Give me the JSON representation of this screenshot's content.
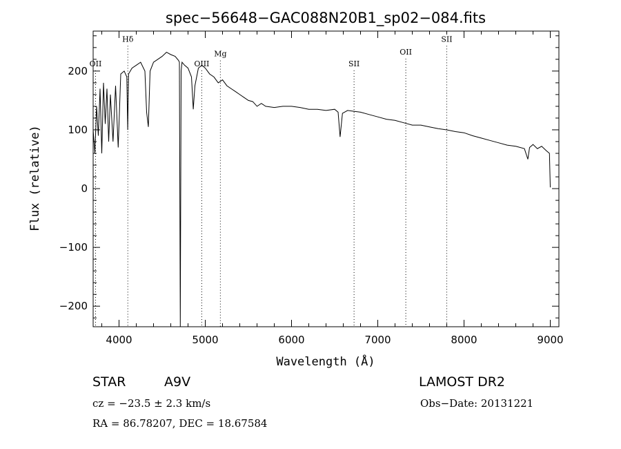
{
  "chart_data": {
    "type": "line",
    "title": "spec−56648−GAC088N20B1_sp02−084.fits",
    "xlabel": "Wavelength (Å)",
    "ylabel": "Flux (relative)",
    "xlim": [
      3700,
      9100
    ],
    "ylim": [
      -235,
      268
    ],
    "x_ticks": [
      4000,
      5000,
      6000,
      7000,
      8000,
      9000
    ],
    "y_ticks": [
      -200,
      -100,
      0,
      100,
      200
    ],
    "x_tick_labels": [
      "4000",
      "5000",
      "6000",
      "7000",
      "8000",
      "9000"
    ],
    "y_tick_labels": [
      "−200",
      "−100",
      "0",
      "100",
      "200"
    ],
    "grid": false,
    "series": [
      {
        "x": [
          3700,
          3720,
          3740,
          3760,
          3780,
          3800,
          3820,
          3840,
          3860,
          3880,
          3900,
          3930,
          3960,
          3990,
          4020,
          4060,
          4090,
          4101,
          4110,
          4150,
          4200,
          4250,
          4300,
          4320,
          4340,
          4360,
          4400,
          4450,
          4500,
          4550,
          4600,
          4650,
          4690,
          4700,
          4710,
          4720,
          4730,
          4760,
          4800,
          4840,
          4861,
          4880,
          4920,
          4960,
          5000,
          5050,
          5100,
          5150,
          5200,
          5250,
          5300,
          5350,
          5400,
          5450,
          5500,
          5550,
          5600,
          5650,
          5700,
          5800,
          5900,
          6000,
          6100,
          6200,
          6300,
          6400,
          6500,
          6540,
          6563,
          6590,
          6650,
          6700,
          6800,
          6900,
          7000,
          7100,
          7200,
          7300,
          7400,
          7500,
          7600,
          7700,
          7800,
          7900,
          8000,
          8100,
          8200,
          8300,
          8400,
          8500,
          8600,
          8700,
          8740,
          8760,
          8800,
          8850,
          8900,
          8950,
          8990,
          9000
        ],
        "values": [
          100,
          60,
          140,
          90,
          170,
          60,
          180,
          110,
          170,
          80,
          160,
          80,
          175,
          70,
          195,
          200,
          190,
          100,
          195,
          205,
          210,
          215,
          200,
          130,
          105,
          200,
          215,
          220,
          225,
          232,
          228,
          225,
          218,
          215,
          -235,
          200,
          215,
          210,
          205,
          190,
          135,
          175,
          205,
          210,
          205,
          195,
          190,
          180,
          185,
          175,
          170,
          165,
          160,
          155,
          150,
          148,
          140,
          145,
          140,
          138,
          140,
          140,
          138,
          135,
          135,
          133,
          135,
          130,
          88,
          128,
          133,
          132,
          130,
          126,
          122,
          118,
          116,
          112,
          108,
          108,
          105,
          102,
          100,
          97,
          95,
          90,
          86,
          82,
          78,
          74,
          72,
          68,
          50,
          70,
          75,
          68,
          72,
          65,
          60,
          2
        ]
      }
    ],
    "lines": [
      {
        "label": "Hδ",
        "x": 4102,
        "y": 250
      },
      {
        "label": "OII",
        "x": 3728,
        "y": 208
      },
      {
        "label": "OIII",
        "x": 4959,
        "y": 208
      },
      {
        "label": "Mg",
        "x": 5175,
        "y": 225
      },
      {
        "label": "SII",
        "x": 6725,
        "y": 208
      },
      {
        "label": "OII",
        "x": 7325,
        "y": 228
      },
      {
        "label": "SII",
        "x": 7800,
        "y": 250
      }
    ]
  },
  "info": {
    "object_class": "STAR",
    "subclass": "A9V",
    "survey": "LAMOST DR2",
    "redshift": "cz = −23.5 ± 2.3 km/s",
    "obs_date": "Obs−Date: 20131221",
    "coords": "RA =  86.78207, DEC =  18.67584"
  }
}
